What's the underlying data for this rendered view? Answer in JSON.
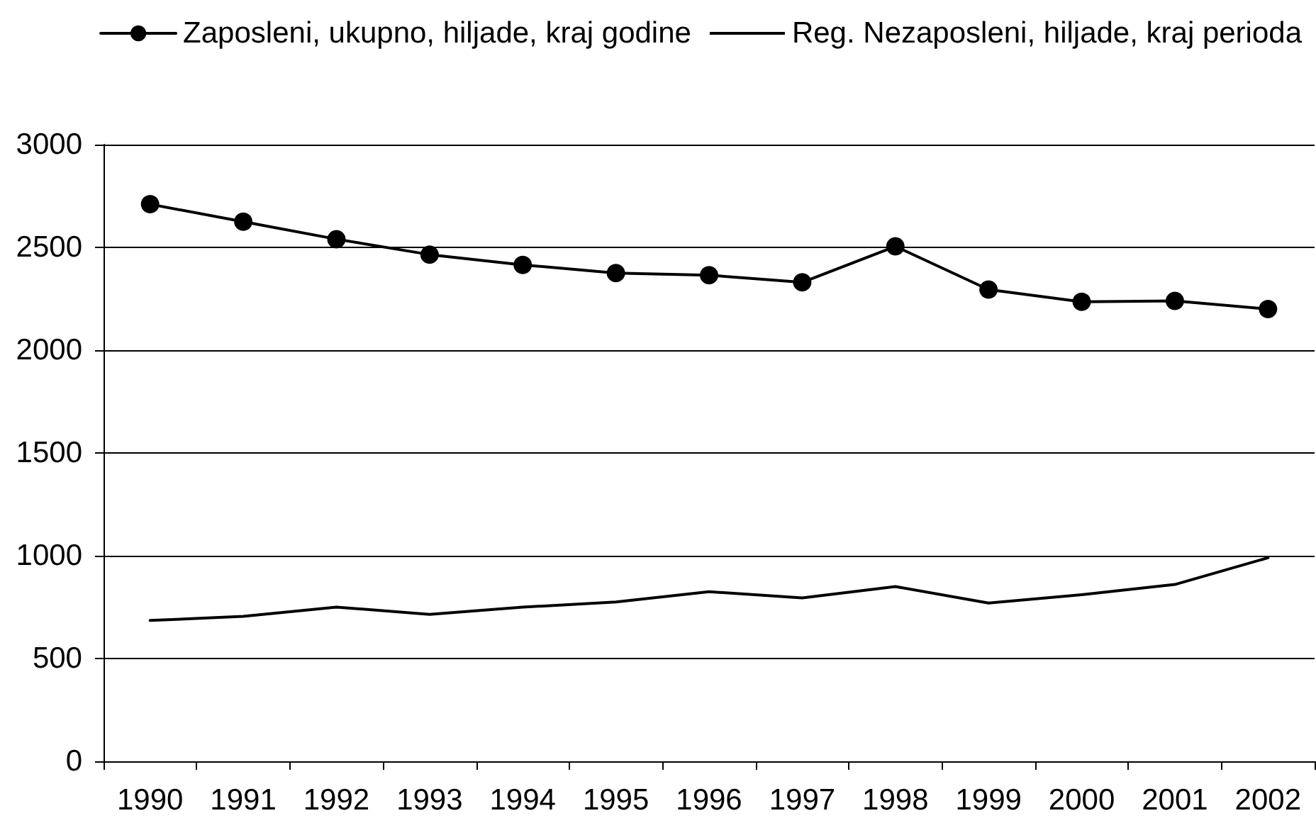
{
  "chart_data": {
    "type": "line",
    "categories": [
      "1990",
      "1991",
      "1992",
      "1993",
      "1994",
      "1995",
      "1996",
      "1997",
      "1998",
      "1999",
      "2000",
      "2001",
      "2002"
    ],
    "series": [
      {
        "name": "Zaposleni, ukupno, hiljade, kraj godine",
        "color": "#000000",
        "marker": "circle",
        "values": [
          2710,
          2625,
          2540,
          2465,
          2415,
          2375,
          2365,
          2330,
          2505,
          2295,
          2235,
          2240,
          2200
        ]
      },
      {
        "name": "Reg. Nezaposleni, hiljade, kraj perioda",
        "color": "#000000",
        "marker": "none",
        "values": [
          685,
          705,
          750,
          715,
          750,
          775,
          825,
          795,
          850,
          770,
          810,
          860,
          990
        ]
      }
    ],
    "ylim": [
      0,
      3000
    ],
    "yticks": [
      0,
      500,
      1000,
      1500,
      2000,
      2500,
      3000
    ],
    "grid": "y",
    "legend": "top right",
    "line_style": "solid"
  }
}
